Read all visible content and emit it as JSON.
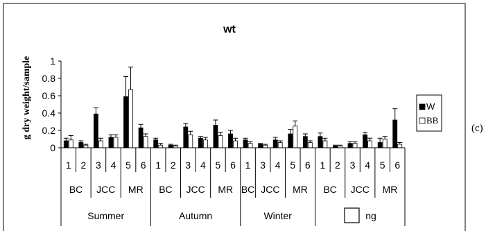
{
  "figure_label": "(c)",
  "chart_data": {
    "type": "bar",
    "title": "wt",
    "xlabel": "",
    "ylabel": "g dry weight/sample",
    "ylim": [
      0,
      1
    ],
    "yticks": [
      "0",
      "0.2",
      "0.4",
      "0.6",
      "0.8",
      "1"
    ],
    "grid": false,
    "legend_position": "right",
    "x_levels": {
      "sample": [
        "1",
        "2",
        "3",
        "4",
        "5",
        "6",
        "1",
        "2",
        "3",
        "4",
        "5",
        "6",
        "1",
        "3",
        "4",
        "5",
        "6",
        "1",
        "2",
        "3",
        "4",
        "5",
        "6"
      ],
      "site": [
        {
          "label": "BC",
          "span": 2
        },
        {
          "label": "JCC",
          "span": 2
        },
        {
          "label": "MR",
          "span": 2
        },
        {
          "label": "BC",
          "span": 2
        },
        {
          "label": "JCC",
          "span": 2
        },
        {
          "label": "MR",
          "span": 2
        },
        {
          "label": "BC",
          "span": 1
        },
        {
          "label": "JCC",
          "span": 2
        },
        {
          "label": "MR",
          "span": 2
        },
        {
          "label": "BC",
          "span": 2
        },
        {
          "label": "JCC",
          "span": 2
        },
        {
          "label": "MR",
          "span": 2
        }
      ],
      "season": [
        {
          "label": "Summer",
          "span": 6
        },
        {
          "label": "Autumn",
          "span": 6
        },
        {
          "label": "Winter",
          "span": 5
        },
        {
          "label": "ng",
          "span": 6
        }
      ]
    },
    "series": [
      {
        "name": "W",
        "color": "#000000",
        "values": [
          0.08,
          0.06,
          0.39,
          0.12,
          0.59,
          0.23,
          0.09,
          0.03,
          0.24,
          0.11,
          0.26,
          0.16,
          0.09,
          0.04,
          0.09,
          0.16,
          0.13,
          0.13,
          0.02,
          0.05,
          0.15,
          0.06,
          0.32
        ],
        "errors": [
          0.03,
          0.02,
          0.07,
          0.03,
          0.23,
          0.04,
          0.02,
          0.01,
          0.04,
          0.02,
          0.06,
          0.04,
          0.02,
          0.01,
          0.03,
          0.05,
          0.03,
          0.04,
          0.01,
          0.02,
          0.03,
          0.05,
          0.13
        ]
      },
      {
        "name": "BB",
        "color": "#ffffff",
        "values": [
          0.09,
          0.03,
          0.08,
          0.12,
          0.67,
          0.13,
          0.03,
          0.02,
          0.15,
          0.09,
          0.14,
          0.08,
          0.05,
          0.03,
          0.06,
          0.25,
          0.06,
          0.08,
          0.02,
          0.05,
          0.08,
          0.1,
          0.04
        ],
        "errors": [
          0.05,
          0.01,
          0.03,
          0.03,
          0.26,
          0.03,
          0.02,
          0.01,
          0.04,
          0.03,
          0.04,
          0.03,
          0.02,
          0.01,
          0.02,
          0.06,
          0.02,
          0.03,
          0.01,
          0.02,
          0.03,
          0.03,
          0.02
        ]
      }
    ]
  }
}
